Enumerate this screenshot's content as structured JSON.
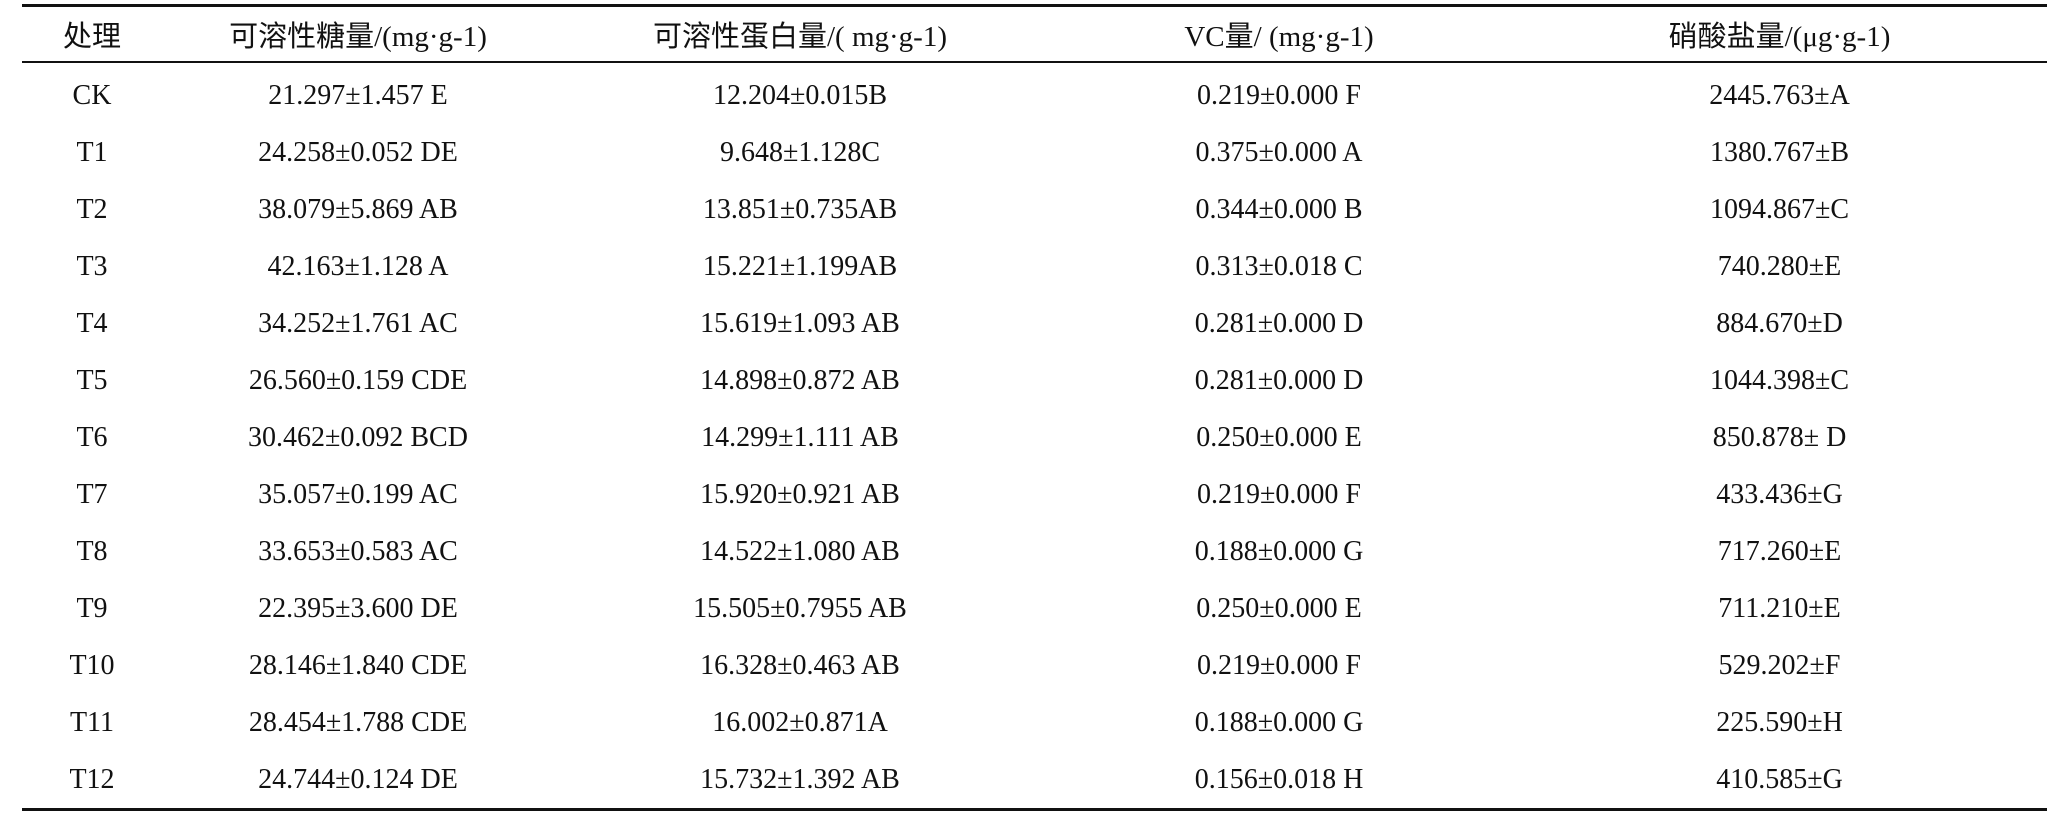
{
  "table": {
    "headers": [
      "处理",
      "可溶性糖量/(mg·g-1)",
      "可溶性蛋白量/( mg·g-1)",
      "VC量/ (mg·g-1)",
      "硝酸盐量/(μg·g-1)"
    ],
    "rows": [
      [
        "CK",
        "21.297±1.457 E",
        "12.204±0.015B",
        "0.219±0.000 F",
        "2445.763±A"
      ],
      [
        "T1",
        "24.258±0.052 DE",
        "9.648±1.128C",
        "0.375±0.000 A",
        "1380.767±B"
      ],
      [
        "T2",
        "38.079±5.869 AB",
        "13.851±0.735AB",
        "0.344±0.000 B",
        "1094.867±C"
      ],
      [
        "T3",
        "42.163±1.128 A",
        "15.221±1.199AB",
        "0.313±0.018 C",
        "740.280±E"
      ],
      [
        "T4",
        "34.252±1.761 AC",
        "15.619±1.093 AB",
        "0.281±0.000 D",
        "884.670±D"
      ],
      [
        "T5",
        "26.560±0.159 CDE",
        "14.898±0.872 AB",
        "0.281±0.000 D",
        "1044.398±C"
      ],
      [
        "T6",
        "30.462±0.092 BCD",
        "14.299±1.111 AB",
        "0.250±0.000 E",
        "850.878± D"
      ],
      [
        "T7",
        "35.057±0.199 AC",
        "15.920±0.921 AB",
        "0.219±0.000 F",
        "433.436±G"
      ],
      [
        "T8",
        "33.653±0.583 AC",
        "14.522±1.080 AB",
        "0.188±0.000 G",
        "717.260±E"
      ],
      [
        "T9",
        "22.395±3.600 DE",
        "15.505±0.7955 AB",
        "0.250±0.000 E",
        "711.210±E"
      ],
      [
        "T10",
        "28.146±1.840 CDE",
        "16.328±0.463 AB",
        "0.219±0.000 F",
        "529.202±F"
      ],
      [
        "T11",
        "28.454±1.788 CDE",
        "16.002±0.871A",
        "0.188±0.000 G",
        "225.590±H"
      ],
      [
        "T12",
        "24.744±0.124 DE",
        "15.732±1.392 AB",
        "0.156±0.018 H",
        "410.585±G"
      ]
    ]
  }
}
